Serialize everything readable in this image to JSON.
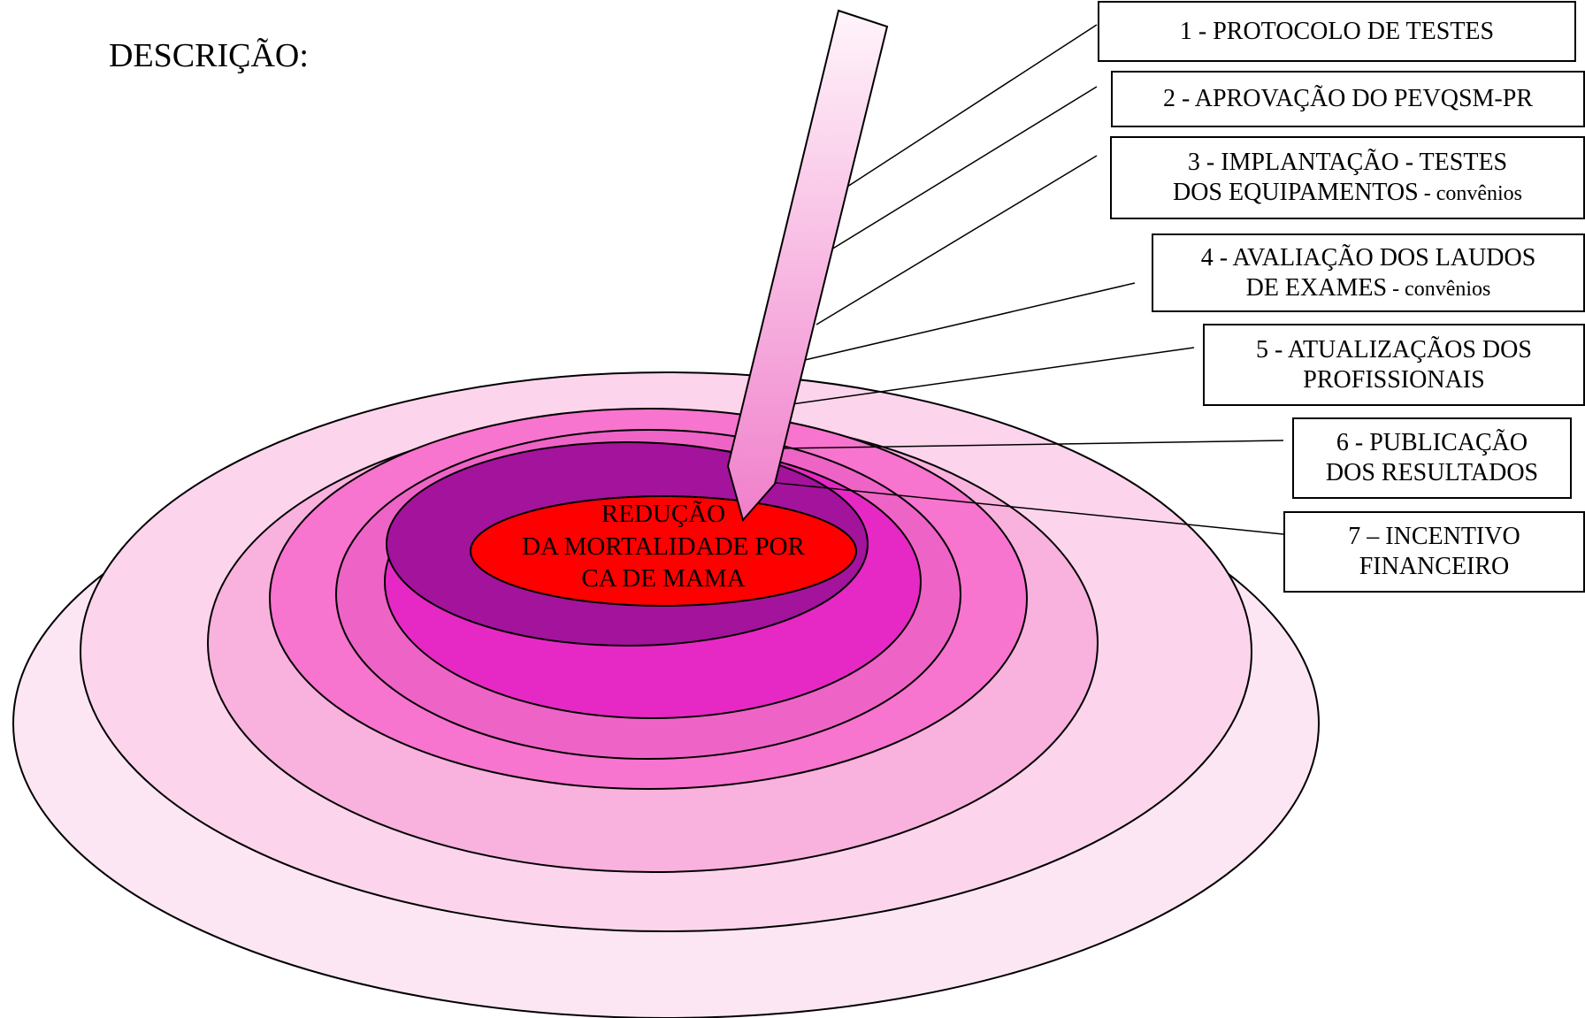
{
  "heading": "DESCRIÇÃO:",
  "center": {
    "lines": [
      "REDUÇÃO",
      "DA MORTALIDADE POR",
      "CA DE MAMA"
    ]
  },
  "steps": [
    {
      "line1": "1 - PROTOCOLO DE TESTES",
      "line2": "",
      "line2_small": ""
    },
    {
      "line1": "2 - APROVAÇÃO DO PEVQSM-PR",
      "line2": "",
      "line2_small": ""
    },
    {
      "line1": "3 - IMPLANTAÇÃO  - TESTES",
      "line2": "DOS EQUIPAMENTOS",
      "line2_small": " - convênios"
    },
    {
      "line1": "4 - AVALIAÇÃO DOS LAUDOS",
      "line2": "DE EXAMES",
      "line2_small": " - convênios"
    },
    {
      "line1": "5 - ATUALIZAÇÃOS DOS",
      "line2": "PROFISSIONAIS",
      "line2_small": ""
    },
    {
      "line1": "6 - PUBLICAÇÃO",
      "line2": "DOS RESULTADOS",
      "line2_small": ""
    },
    {
      "line1": "7 – INCENTIVO",
      "line2": "FINANCEIRO",
      "line2_small": ""
    }
  ],
  "colors": {
    "ring_outer": "#fde6f3",
    "ring_2": "#fcd5ec",
    "ring_3": "#f9b1dd",
    "ring_4": "#f774cf",
    "ring_5": "#ee64c6",
    "ring_6": "#e629c4",
    "ring_inner": "#a3139b",
    "center": "#ff0000",
    "arrow_light": "#fff4fa",
    "arrow_dark": "#f07fcb"
  }
}
